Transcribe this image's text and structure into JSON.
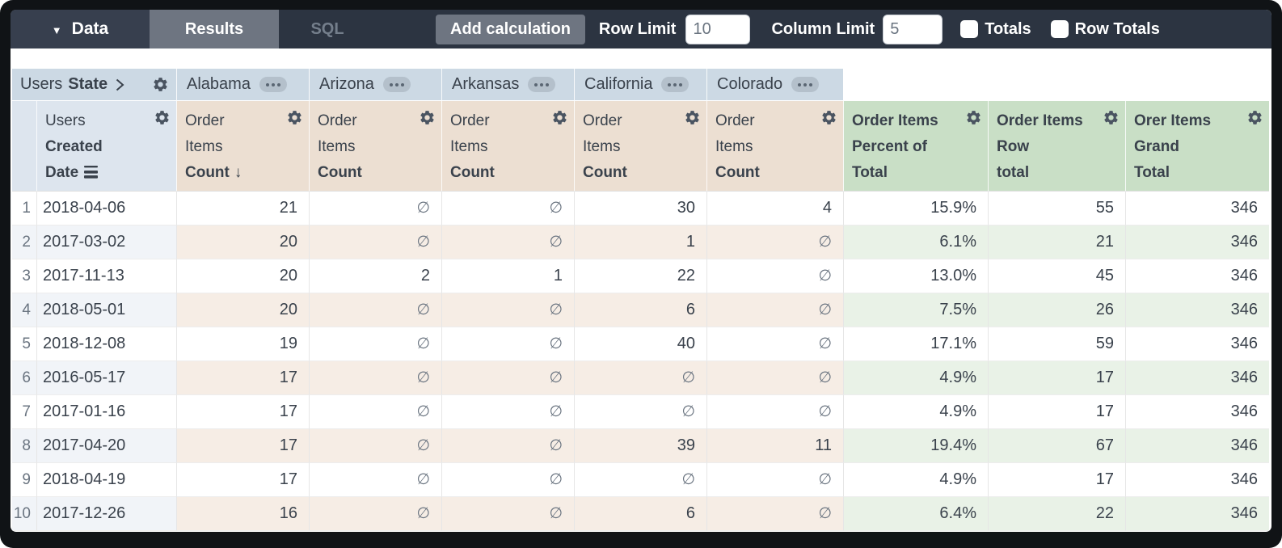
{
  "toolbar": {
    "data_label": "Data",
    "results_label": "Results",
    "sql_label": "SQL",
    "add_calculation_label": "Add calculation",
    "row_limit_label": "Row Limit",
    "row_limit_value": "10",
    "column_limit_label": "Column Limit",
    "column_limit_value": "5",
    "totals_label": "Totals",
    "totals_checked": false,
    "row_totals_label": "Row Totals",
    "row_totals_checked": false
  },
  "pivot": {
    "dimension_view": "Users",
    "dimension_field": "State",
    "states": [
      "Alabama",
      "Arizona",
      "Arkansas",
      "California",
      "Colorado"
    ]
  },
  "headers": {
    "date_view": "Users",
    "date_field_line1": "Created",
    "date_field_line2": "Date",
    "sort_icon": "↓",
    "measures": [
      {
        "line1": "Order",
        "line2": "Items",
        "line3": "Count",
        "sorted": true
      },
      {
        "line1": "Order",
        "line2": "Items",
        "line3": "Count",
        "sorted": false
      },
      {
        "line1": "Order",
        "line2": "Items",
        "line3": "Count",
        "sorted": false
      },
      {
        "line1": "Order",
        "line2": "Items",
        "line3": "Count",
        "sorted": false
      },
      {
        "line1": "Order",
        "line2": "Items",
        "line3": "Count",
        "sorted": false
      }
    ],
    "calculations": [
      {
        "line1": "Order Items",
        "line2": "Percent of",
        "line3": "Total"
      },
      {
        "line1": "Order Items",
        "line2": "Row",
        "line3": "total"
      },
      {
        "line1": "Orer Items",
        "line2": "Grand",
        "line3": "Total"
      }
    ]
  },
  "table": {
    "null_symbol": "∅",
    "rows": [
      {
        "num": "1",
        "date": "2018-04-06",
        "values": [
          "21",
          "∅",
          "∅",
          "30",
          "4"
        ],
        "calcs": [
          "15.9%",
          "55",
          "346"
        ]
      },
      {
        "num": "2",
        "date": "2017-03-02",
        "values": [
          "20",
          "∅",
          "∅",
          "1",
          "∅"
        ],
        "calcs": [
          "6.1%",
          "21",
          "346"
        ]
      },
      {
        "num": "3",
        "date": "2017-11-13",
        "values": [
          "20",
          "2",
          "1",
          "22",
          "∅"
        ],
        "calcs": [
          "13.0%",
          "45",
          "346"
        ]
      },
      {
        "num": "4",
        "date": "2018-05-01",
        "values": [
          "20",
          "∅",
          "∅",
          "6",
          "∅"
        ],
        "calcs": [
          "7.5%",
          "26",
          "346"
        ]
      },
      {
        "num": "5",
        "date": "2018-12-08",
        "values": [
          "19",
          "∅",
          "∅",
          "40",
          "∅"
        ],
        "calcs": [
          "17.1%",
          "59",
          "346"
        ]
      },
      {
        "num": "6",
        "date": "2016-05-17",
        "values": [
          "17",
          "∅",
          "∅",
          "∅",
          "∅"
        ],
        "calcs": [
          "4.9%",
          "17",
          "346"
        ]
      },
      {
        "num": "7",
        "date": "2017-01-16",
        "values": [
          "17",
          "∅",
          "∅",
          "∅",
          "∅"
        ],
        "calcs": [
          "4.9%",
          "17",
          "346"
        ]
      },
      {
        "num": "8",
        "date": "2017-04-20",
        "values": [
          "17",
          "∅",
          "∅",
          "39",
          "11"
        ],
        "calcs": [
          "19.4%",
          "67",
          "346"
        ]
      },
      {
        "num": "9",
        "date": "2018-04-19",
        "values": [
          "17",
          "∅",
          "∅",
          "∅",
          "∅"
        ],
        "calcs": [
          "4.9%",
          "17",
          "346"
        ]
      },
      {
        "num": "10",
        "date": "2017-12-26",
        "values": [
          "16",
          "∅",
          "∅",
          "6",
          "∅"
        ],
        "calcs": [
          "6.4%",
          "22",
          "346"
        ]
      }
    ]
  },
  "colors": {
    "topbar_bg": "#2c3441",
    "data_block_bg": "#373f4e",
    "active_tab_bg": "#6e7581",
    "pivot_header_bg": "#ccd9e4",
    "dimension_header_bg": "#dde5ee",
    "measure_header_bg": "#ecdfd2",
    "calc_header_bg": "#c9dfc6",
    "even_row_tint": "#f1f4f8",
    "even_row_tan": "#f6ede5",
    "even_row_green": "#e9f2e7",
    "text_dark": "#3a424c",
    "text_gray": "#6a7480"
  }
}
